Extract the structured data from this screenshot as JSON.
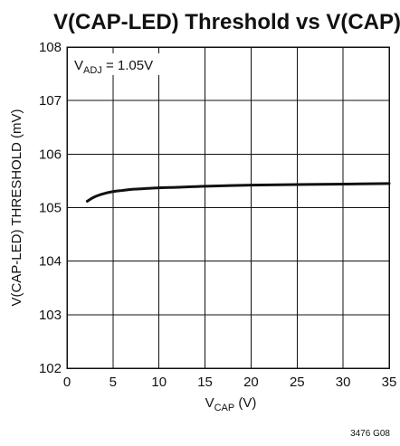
{
  "chart_data": {
    "type": "line",
    "title": "V(CAP-LED) Threshold vs V(CAP)",
    "xlabel": {
      "main": "V",
      "sub": "CAP",
      "suffix": " (V)"
    },
    "ylabel": "V(CAP-LED) THRESHOLD (mV)",
    "xlim": [
      0,
      35
    ],
    "ylim": [
      102,
      108
    ],
    "x_ticks": [
      0,
      5,
      10,
      15,
      20,
      25,
      30,
      35
    ],
    "y_ticks": [
      102,
      103,
      104,
      105,
      106,
      107,
      108
    ],
    "x_tick_labels": [
      "0",
      "5",
      "10",
      "15",
      "20",
      "25",
      "30",
      "35"
    ],
    "y_tick_labels": [
      "102",
      "103",
      "104",
      "105",
      "106",
      "107",
      "108"
    ],
    "grid": true,
    "annotation": {
      "main": "V",
      "sub": "ADJ",
      "suffix": " = 1.05V"
    },
    "series": [
      {
        "x": [
          2.2,
          3,
          4,
          5,
          6,
          7,
          8,
          10,
          12,
          15,
          20,
          25,
          30,
          35
        ],
        "y": [
          105.12,
          105.2,
          105.26,
          105.3,
          105.32,
          105.34,
          105.35,
          105.37,
          105.38,
          105.4,
          105.42,
          105.43,
          105.44,
          105.45
        ]
      }
    ]
  },
  "figure_code": "3476 G08"
}
